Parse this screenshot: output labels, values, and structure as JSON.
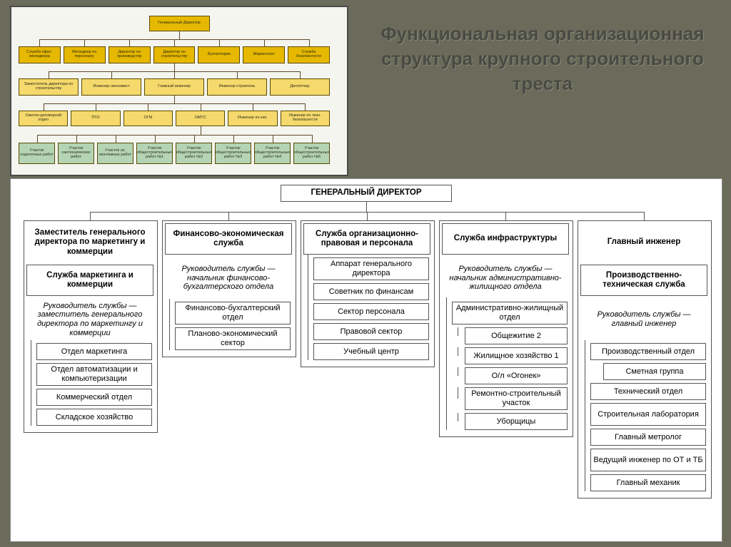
{
  "title": "Функциональная организационная структура крупного строительного треста",
  "colors": {
    "slide_bg": "#6b6b5b",
    "paper_bg": "#ffffff",
    "thumb_bg": "#f5f5ef",
    "line": "#555555",
    "text": "#000000",
    "thumb_yellow_dark": "#e6b800",
    "thumb_yellow_light": "#f5d96c",
    "thumb_green": "#b4d4b4"
  },
  "thumb": {
    "type": "tree",
    "levels": [
      [
        {
          "label": "Генеральный Директор",
          "color": "yellow_dark"
        }
      ],
      [
        {
          "label": "Служба офис-менеджера",
          "color": "yellow_dark"
        },
        {
          "label": "Менеджер по персоналу",
          "color": "yellow_dark"
        },
        {
          "label": "Директор по производству",
          "color": "yellow_dark"
        },
        {
          "label": "Директор по строительству",
          "color": "yellow_dark"
        },
        {
          "label": "Бухгалтерия",
          "color": "yellow_dark"
        },
        {
          "label": "Маркетолог",
          "color": "yellow_dark"
        },
        {
          "label": "Служба безопасности",
          "color": "yellow_dark"
        }
      ],
      [
        {
          "label": "Заместитель директора по строительству",
          "color": "yellow_light"
        },
        {
          "label": "Инженер-экономист",
          "color": "yellow_light"
        },
        {
          "label": "Главный инженер",
          "color": "yellow_light"
        },
        {
          "label": "Инженер-строитель",
          "color": "yellow_light"
        },
        {
          "label": "Диспетчер",
          "color": "yellow_light"
        }
      ],
      [
        {
          "label": "Сметно-договорной отдел",
          "color": "yellow_light"
        },
        {
          "label": "ПТО",
          "color": "yellow_light"
        },
        {
          "label": "ОГМ",
          "color": "yellow_light"
        },
        {
          "label": "ОМТС",
          "color": "yellow_light"
        },
        {
          "label": "Инженер по кач.",
          "color": "yellow_light"
        },
        {
          "label": "Инженер по техн. безопасности",
          "color": "yellow_light"
        }
      ],
      [
        {
          "label": "Участок отделочных работ",
          "color": "green"
        },
        {
          "label": "Участок сантехнических работ",
          "color": "green"
        },
        {
          "label": "Участок эл. монтажных работ",
          "color": "green"
        },
        {
          "label": "Участок общестроительных работ №1",
          "color": "green"
        },
        {
          "label": "Участок общестроительных работ №2",
          "color": "green"
        },
        {
          "label": "Участок общестроительных работ №3",
          "color": "green"
        },
        {
          "label": "Участок общестроительных работ №4",
          "color": "green"
        },
        {
          "label": "Участок общестроительных работ №5",
          "color": "green"
        }
      ]
    ]
  },
  "main": {
    "type": "tree",
    "root": "ГЕНЕРАЛЬНЫЙ ДИРЕКТОР",
    "columns": [
      {
        "head": "Заместитель генерального директора по маркетингу и коммерции",
        "service": "Служба маркетинга и коммерции",
        "desc": "Руководитель службы — заместитель генерального директора по маркетингу и коммерции",
        "depts": [
          "Отдел маркетинга",
          "Отдел автоматизации и компьютеризации",
          "Коммерческий отдел",
          "Складское хозяйство"
        ]
      },
      {
        "head": "",
        "service": "Финансово-экономическая служба",
        "desc": "Руководитель службы — начальник финансово-бухгалтерского отдела",
        "depts": [
          "Финансово-бухгалтерский отдел",
          "Планово-экономический сектор"
        ]
      },
      {
        "head": "",
        "service": "Служба организационно-правовая и персонала",
        "desc": "",
        "depts": [
          "Аппарат генерального директора",
          "Советник по финансам",
          "Сектор персонала",
          "Правовой сектор",
          "Учебный центр"
        ]
      },
      {
        "head": "",
        "service": "Служба инфраструктуры",
        "desc": "Руководитель службы — начальник административно-жилищного отдела",
        "depts": [
          "Административно-жилищный отдел",
          "Общежитие 2",
          "Жилищное хозяйство 1",
          "О/л «Огонек»",
          "Ремонтно-строительный участок",
          "Уборщицы"
        ]
      },
      {
        "head": "Главный инженер",
        "service": "Производственно-техническая служба",
        "desc": "Руководитель службы — главный инженер",
        "depts": [
          "Производственный отдел",
          "Сметная группа",
          "Технический отдел",
          "Строительная лаборатория",
          "Главный метролог",
          "Ведущий инженер по ОТ и ТБ",
          "Главный механик"
        ]
      }
    ]
  }
}
